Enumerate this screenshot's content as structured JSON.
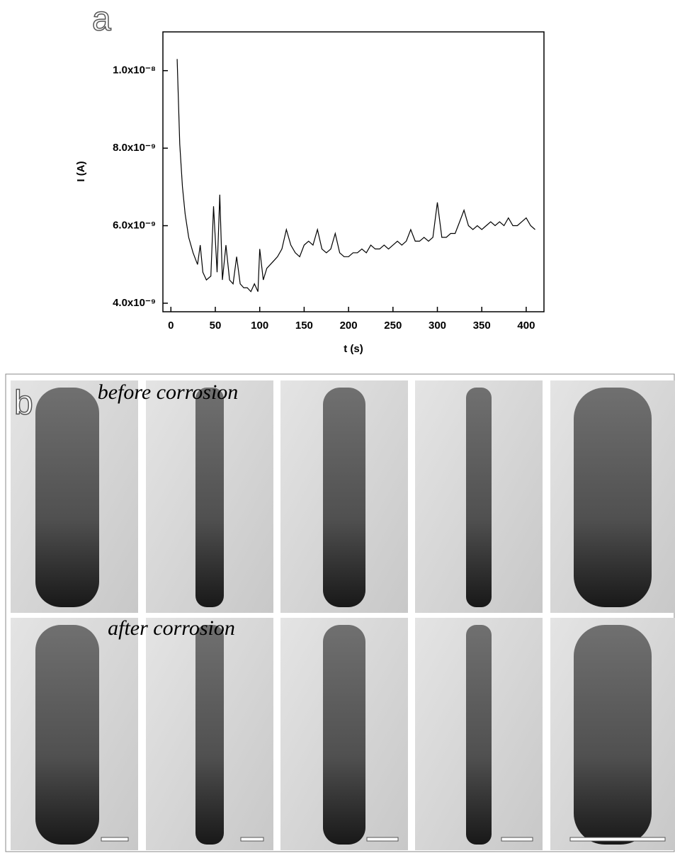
{
  "panel_a": {
    "label": "a"
  },
  "chart_data": {
    "type": "line",
    "x_label": "t (s)",
    "y_label": "I (A)",
    "x": [
      7,
      10,
      13,
      16,
      20,
      25,
      30,
      33,
      36,
      40,
      45,
      48,
      52,
      55,
      58,
      62,
      66,
      70,
      74,
      78,
      82,
      86,
      90,
      94,
      98,
      100,
      104,
      108,
      112,
      116,
      120,
      125,
      130,
      135,
      140,
      145,
      150,
      155,
      160,
      165,
      170,
      175,
      180,
      185,
      190,
      195,
      200,
      205,
      210,
      215,
      220,
      225,
      230,
      235,
      240,
      245,
      250,
      255,
      260,
      265,
      270,
      275,
      280,
      285,
      290,
      295,
      300,
      305,
      310,
      315,
      320,
      325,
      330,
      335,
      340,
      345,
      350,
      355,
      360,
      365,
      370,
      375,
      380,
      385,
      390,
      395,
      400,
      405,
      410
    ],
    "series": [
      {
        "color": "#000000",
        "values": [
          1.03e-08,
          8.1e-09,
          7e-09,
          6.3e-09,
          5.7e-09,
          5.3e-09,
          5e-09,
          5.5e-09,
          4.8e-09,
          4.6e-09,
          4.7e-09,
          6.5e-09,
          4.8e-09,
          6.8e-09,
          4.6e-09,
          5.5e-09,
          4.6e-09,
          4.5e-09,
          5.2e-09,
          4.5e-09,
          4.4e-09,
          4.4e-09,
          4.3e-09,
          4.5e-09,
          4.3e-09,
          5.4e-09,
          4.6e-09,
          4.9e-09,
          5e-09,
          5.1e-09,
          5.2e-09,
          5.4e-09,
          5.9e-09,
          5.5e-09,
          5.3e-09,
          5.2e-09,
          5.5e-09,
          5.6e-09,
          5.5e-09,
          5.9e-09,
          5.4e-09,
          5.3e-09,
          5.4e-09,
          5.8e-09,
          5.3e-09,
          5.2e-09,
          5.2e-09,
          5.3e-09,
          5.3e-09,
          5.4e-09,
          5.3e-09,
          5.5e-09,
          5.4e-09,
          5.4e-09,
          5.5e-09,
          5.4e-09,
          5.5e-09,
          5.6e-09,
          5.5e-09,
          5.6e-09,
          5.9e-09,
          5.6e-09,
          5.6e-09,
          5.7e-09,
          5.6e-09,
          5.7e-09,
          6.6e-09,
          5.7e-09,
          5.7e-09,
          5.8e-09,
          5.8e-09,
          6.1e-09,
          6.4e-09,
          6e-09,
          5.9e-09,
          6e-09,
          5.9e-09,
          6e-09,
          6.1e-09,
          6e-09,
          6.1e-09,
          6e-09,
          6.2e-09,
          6e-09,
          6e-09,
          6.1e-09,
          6.2e-09,
          6e-09,
          5.9e-09
        ]
      }
    ],
    "xlim": [
      -9,
      420
    ],
    "xticks": [
      0,
      50,
      100,
      150,
      200,
      250,
      300,
      350,
      400
    ],
    "ylim": [
      3.78e-09,
      1.1e-08
    ],
    "yticks": [
      {
        "value": 4e-09,
        "label": "4.0x10⁻⁹"
      },
      {
        "value": 6e-09,
        "label": "6.0x10⁻⁹"
      },
      {
        "value": 8e-09,
        "label": "8.0x10⁻⁹"
      },
      {
        "value": 1e-08,
        "label": "1.0x10⁻⁸"
      }
    ]
  },
  "panel_b": {
    "label": "b",
    "captions": [
      "before corrosion",
      "after corrosion"
    ]
  }
}
